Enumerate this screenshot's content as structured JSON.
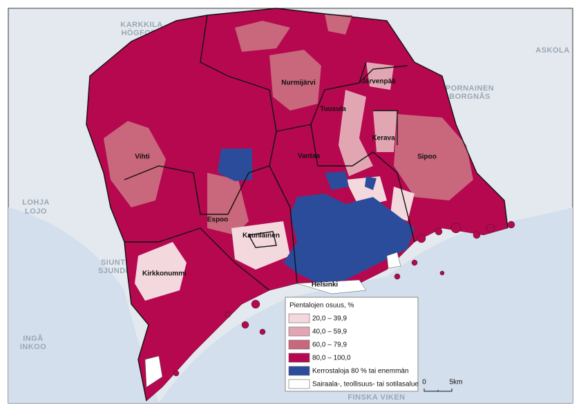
{
  "map": {
    "municipalities": [
      "Nurmijärvi",
      "Tuusula",
      "Järvenpää",
      "Kerava",
      "Vantaa",
      "Sipoo",
      "Vihti",
      "Espoo",
      "Kauniainen",
      "Kirkkonummi",
      "Helsinki"
    ],
    "basemap_labels": [
      "KARKKILA",
      "HÖGFORS",
      "PORNAINEN",
      "BORGNÅS",
      "ASKOLA",
      "LOHJA",
      "LOJO",
      "SIUNTIO",
      "SJUNDEÅ",
      "INGÅ",
      "INKOO",
      "FINSKA VIKEN"
    ],
    "legend": {
      "title": "Pientalojen osuus, %",
      "items": [
        {
          "label": "20,0 – 39,9",
          "color": "#f3d8dd"
        },
        {
          "label": "40,0 – 59,9",
          "color": "#e2a6b3"
        },
        {
          "label": "60,0 – 79,9",
          "color": "#c9677c"
        },
        {
          "label": "80,0 – 100,0",
          "color": "#b5084f"
        },
        {
          "label": "Kerrostaloja 80 % tai enemmän",
          "color": "#2b4c9b"
        },
        {
          "label": "Sairaala-, teollisuus- tai sotilasalue",
          "color": "#ffffff"
        }
      ]
    },
    "scale": {
      "start": "0",
      "end": "5km"
    }
  }
}
